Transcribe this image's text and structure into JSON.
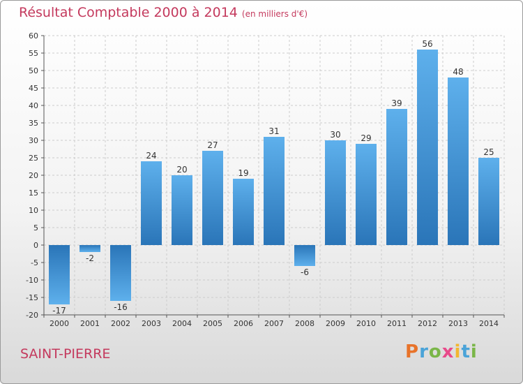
{
  "header": {
    "title": "Résultat Comptable 2000 à 2014",
    "unit": "(en milliers d'€)"
  },
  "footer": {
    "place": "SAINT-PIERRE"
  },
  "logo": {
    "text": "Proxiti",
    "letter_colors": [
      "#e8732a",
      "#4aa3d8",
      "#7ab648",
      "#e84a8a",
      "#f2b630",
      "#4aa3d8",
      "#7ab648"
    ]
  },
  "chart_data": {
    "type": "bar",
    "title": "Résultat Comptable 2000 à 2014",
    "subtitle": "(en milliers d'€)",
    "categories": [
      "2000",
      "2001",
      "2002",
      "2003",
      "2004",
      "2005",
      "2006",
      "2007",
      "2008",
      "2009",
      "2010",
      "2011",
      "2012",
      "2013",
      "2014"
    ],
    "values": [
      -17,
      -2,
      -16,
      24,
      20,
      27,
      19,
      31,
      -6,
      30,
      29,
      39,
      56,
      48,
      25
    ],
    "ylim": [
      -20,
      60
    ],
    "yticks": [
      -20,
      -15,
      -10,
      -5,
      0,
      5,
      10,
      15,
      20,
      25,
      30,
      35,
      40,
      45,
      50,
      55,
      60
    ],
    "grid": true,
    "bar_color": "#4a9fe0",
    "bar_color_dark": "#2a75b8"
  }
}
